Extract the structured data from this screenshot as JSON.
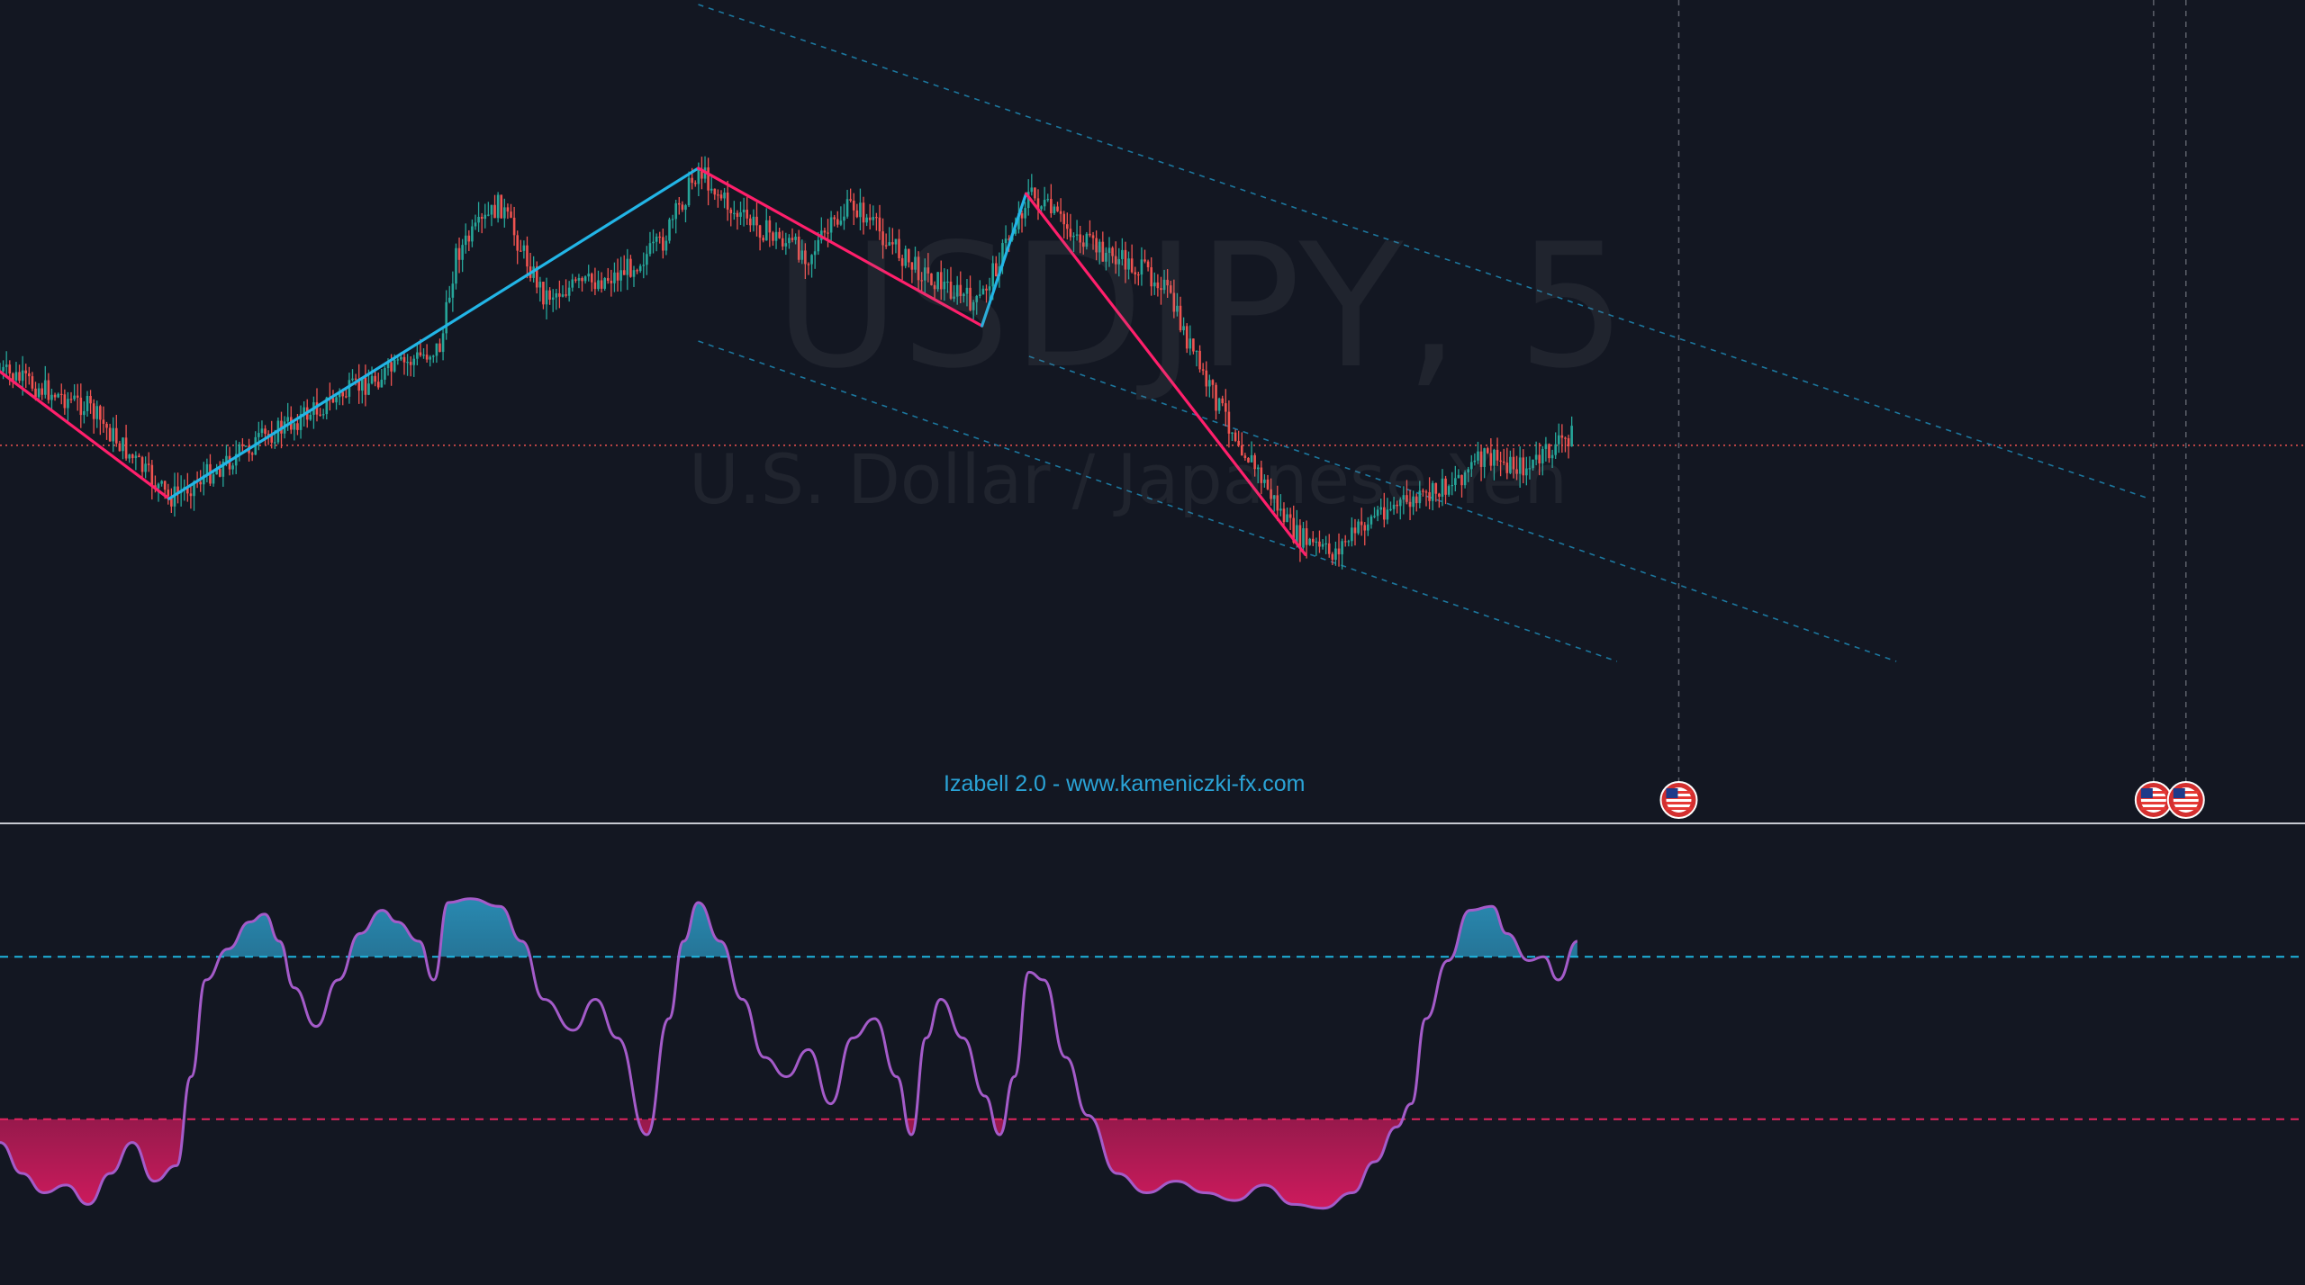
{
  "window": {
    "symbol_watermark": "USDJPY, 5",
    "description_watermark": "U.S. Dollar / Japanese Yen",
    "indicator_caption": "Izabell 2.0 - www.kameniczki-fx.com"
  },
  "colors": {
    "background": "#131722",
    "bull": "#26a69a",
    "bear": "#ef5350",
    "zigzag_up": "#22b5e6",
    "zigzag_down": "#ff1f6b",
    "channel": "#1e88b4",
    "oscillator_line": "#a45bc9",
    "upper_level": "#1eb5df",
    "lower_level": "#e0245e"
  },
  "events": [
    {
      "icon": "us-flag-icon",
      "label": "US economic event"
    },
    {
      "icon": "us-flag-icon",
      "label": "US economic event"
    },
    {
      "icon": "us-flag-icon",
      "label": "US economic event"
    }
  ],
  "chart_data": [
    {
      "type": "candlestick",
      "symbol": "USDJPY",
      "timeframe": "5",
      "price_path": [
        [
          0,
          0.43
        ],
        [
          60,
          0.5
        ],
        [
          90,
          0.6
        ],
        [
          115,
          0.68
        ],
        [
          180,
          0.56
        ],
        [
          230,
          0.48
        ],
        [
          300,
          0.38
        ],
        [
          310,
          0.2
        ],
        [
          340,
          0.1
        ],
        [
          370,
          0.28
        ],
        [
          420,
          0.24
        ],
        [
          450,
          0.18
        ],
        [
          475,
          0.03
        ],
        [
          500,
          0.12
        ],
        [
          550,
          0.2
        ],
        [
          580,
          0.1
        ],
        [
          620,
          0.22
        ],
        [
          665,
          0.3
        ],
        [
          700,
          0.08
        ],
        [
          740,
          0.18
        ],
        [
          790,
          0.25
        ],
        [
          820,
          0.45
        ],
        [
          850,
          0.6
        ],
        [
          880,
          0.75
        ],
        [
          905,
          0.79
        ],
        [
          940,
          0.7
        ],
        [
          970,
          0.68
        ],
        [
          1010,
          0.6
        ],
        [
          1040,
          0.62
        ],
        [
          1070,
          0.55
        ]
      ],
      "last_price_level": 0.575,
      "zigzag": [
        [
          0,
          0.43
        ],
        [
          115,
          0.68
        ],
        [
          475,
          0.03
        ],
        [
          668,
          0.34
        ],
        [
          698,
          0.08
        ],
        [
          888,
          0.79
        ]
      ],
      "zigzag_up_segments": [
        1,
        3
      ],
      "channel_upper": [
        [
          475,
          0.0
        ],
        [
          1460,
          0.97
        ]
      ],
      "channel_middle": [
        [
          700,
          0.4
        ],
        [
          1290,
          1.0
        ]
      ],
      "channel_lower": [
        [
          475,
          0.37
        ],
        [
          1100,
          1.0
        ]
      ],
      "event_times": [
        1142,
        1465,
        1487
      ]
    },
    {
      "type": "line",
      "name": "Izabell 2.0",
      "upper_level": 0.24,
      "lower_level": 0.66,
      "oscillator": [
        [
          0,
          0.72
        ],
        [
          15,
          0.8
        ],
        [
          30,
          0.85
        ],
        [
          45,
          0.83
        ],
        [
          60,
          0.88
        ],
        [
          75,
          0.8
        ],
        [
          90,
          0.72
        ],
        [
          105,
          0.82
        ],
        [
          120,
          0.78
        ],
        [
          130,
          0.55
        ],
        [
          140,
          0.3
        ],
        [
          155,
          0.22
        ],
        [
          170,
          0.15
        ],
        [
          180,
          0.13
        ],
        [
          190,
          0.2
        ],
        [
          200,
          0.32
        ],
        [
          215,
          0.42
        ],
        [
          230,
          0.3
        ],
        [
          245,
          0.18
        ],
        [
          260,
          0.12
        ],
        [
          270,
          0.15
        ],
        [
          285,
          0.2
        ],
        [
          295,
          0.3
        ],
        [
          305,
          0.1
        ],
        [
          320,
          0.09
        ],
        [
          340,
          0.11
        ],
        [
          355,
          0.2
        ],
        [
          370,
          0.35
        ],
        [
          390,
          0.43
        ],
        [
          405,
          0.35
        ],
        [
          420,
          0.45
        ],
        [
          440,
          0.7
        ],
        [
          455,
          0.4
        ],
        [
          465,
          0.2
        ],
        [
          475,
          0.1
        ],
        [
          490,
          0.2
        ],
        [
          505,
          0.35
        ],
        [
          520,
          0.5
        ],
        [
          535,
          0.55
        ],
        [
          550,
          0.48
        ],
        [
          565,
          0.62
        ],
        [
          580,
          0.45
        ],
        [
          595,
          0.4
        ],
        [
          610,
          0.55
        ],
        [
          620,
          0.7
        ],
        [
          630,
          0.45
        ],
        [
          640,
          0.35
        ],
        [
          655,
          0.45
        ],
        [
          670,
          0.6
        ],
        [
          680,
          0.7
        ],
        [
          690,
          0.55
        ],
        [
          700,
          0.28
        ],
        [
          710,
          0.3
        ],
        [
          725,
          0.5
        ],
        [
          740,
          0.65
        ],
        [
          760,
          0.8
        ],
        [
          780,
          0.85
        ],
        [
          800,
          0.82
        ],
        [
          820,
          0.85
        ],
        [
          840,
          0.87
        ],
        [
          860,
          0.83
        ],
        [
          880,
          0.88
        ],
        [
          900,
          0.89
        ],
        [
          920,
          0.85
        ],
        [
          935,
          0.77
        ],
        [
          950,
          0.68
        ],
        [
          960,
          0.62
        ],
        [
          970,
          0.4
        ],
        [
          985,
          0.25
        ],
        [
          1000,
          0.12
        ],
        [
          1015,
          0.11
        ],
        [
          1025,
          0.18
        ],
        [
          1040,
          0.25
        ],
        [
          1050,
          0.24
        ],
        [
          1060,
          0.3
        ],
        [
          1073,
          0.2
        ]
      ]
    }
  ]
}
